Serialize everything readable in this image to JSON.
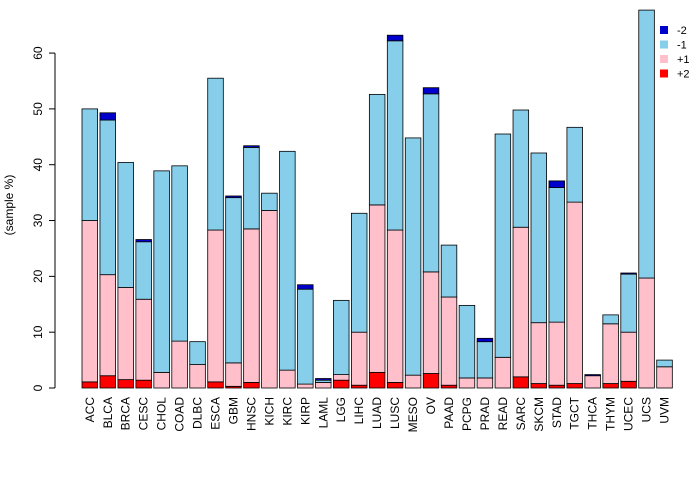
{
  "chart_data": {
    "type": "bar",
    "stacked": true,
    "title": "",
    "xlabel": "",
    "ylabel": "(sample %)",
    "ylim": [
      0,
      67
    ],
    "yticks": [
      0,
      10,
      20,
      30,
      40,
      50,
      60
    ],
    "categories": [
      "ACC",
      "BLCA",
      "BRCA",
      "CESC",
      "CHOL",
      "COAD",
      "DLBC",
      "ESCA",
      "GBM",
      "HNSC",
      "KICH",
      "KIRC",
      "KIRP",
      "LAML",
      "LGG",
      "LIHC",
      "LUAD",
      "LUSC",
      "MESO",
      "OV",
      "PAAD",
      "PCPG",
      "PRAD",
      "READ",
      "SARC",
      "SKCM",
      "STAD",
      "TGCT",
      "THCA",
      "THYM",
      "UCEC",
      "UCS",
      "UVM"
    ],
    "series": [
      {
        "name": "+2",
        "color": "#ff0000",
        "values": [
          1.1,
          2.2,
          1.5,
          1.4,
          0,
          0,
          0,
          1.1,
          0.3,
          1.0,
          0,
          0,
          0,
          0,
          1.4,
          0.5,
          2.8,
          1.0,
          0,
          2.6,
          0.5,
          0,
          0,
          0,
          2.0,
          0.8,
          0.5,
          0.8,
          0,
          0.8,
          1.2,
          0,
          0
        ]
      },
      {
        "name": "+1",
        "color": "#ffc0cb",
        "values": [
          28.9,
          18.1,
          16.5,
          14.5,
          2.8,
          8.4,
          4.2,
          27.2,
          4.2,
          27.5,
          31.8,
          3.2,
          0.7,
          1.0,
          1.0,
          9.5,
          30.0,
          27.3,
          2.3,
          18.2,
          15.8,
          1.8,
          1.8,
          5.5,
          26.8,
          10.9,
          11.3,
          32.5,
          2.2,
          10.7,
          8.8,
          19.7,
          3.8
        ]
      },
      {
        "name": "-1",
        "color": "#87ceeb",
        "values": [
          20.0,
          27.7,
          22.4,
          10.3,
          36.1,
          31.4,
          4.1,
          27.2,
          29.6,
          14.6,
          3.1,
          39.2,
          17.0,
          0.4,
          13.3,
          21.3,
          19.8,
          33.9,
          42.5,
          31.9,
          9.3,
          13.0,
          6.5,
          40.0,
          21.0,
          30.4,
          24.1,
          13.4,
          0,
          1.6,
          10.4,
          48.0,
          1.2
        ]
      },
      {
        "name": "-2",
        "color": "#0000cd",
        "values": [
          0,
          1.3,
          0,
          0.4,
          0,
          0,
          0,
          0,
          0.3,
          0.3,
          0,
          0,
          0.8,
          0.3,
          0,
          0,
          0,
          1.0,
          0,
          1.1,
          0,
          0,
          0.6,
          0,
          0,
          0,
          1.2,
          0,
          0.2,
          0,
          0.2,
          0,
          0
        ]
      }
    ],
    "legend": {
      "position": "top-right",
      "entries": [
        "-2",
        "-1",
        "+1",
        "+2"
      ]
    }
  }
}
